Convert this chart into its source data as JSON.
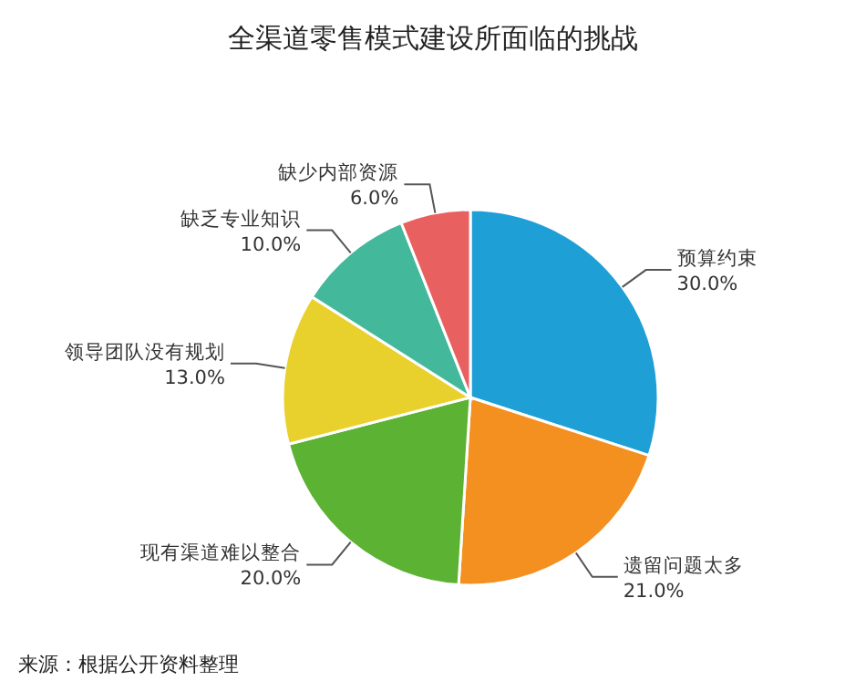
{
  "chart_data": {
    "type": "pie",
    "title": "全渠道零售模式建设所面临的挑战",
    "categories": [
      "预算约束",
      "遗留问题太多",
      "现有渠道难以整合",
      "领导团队没有规划",
      "缺乏专业知识",
      "缺少内部资源"
    ],
    "values": [
      30,
      21,
      20,
      13,
      10,
      6
    ],
    "colors": [
      "#1e9fd6",
      "#f39020",
      "#5bb233",
      "#e8d12c",
      "#43b89a",
      "#e8605f"
    ],
    "value_labels": [
      "30.0%",
      "21.0%",
      "20.0%",
      "13.0%",
      "10.0%",
      "6.0%"
    ],
    "annotations": [
      "来源：根据公开资料整理"
    ]
  }
}
